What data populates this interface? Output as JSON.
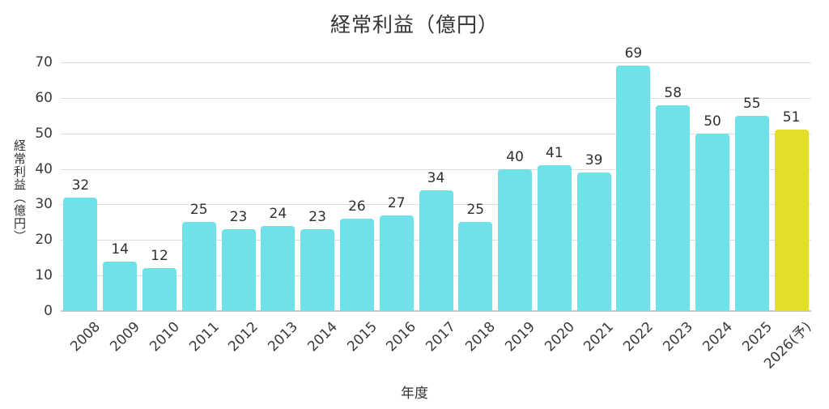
{
  "chart_data": {
    "type": "bar",
    "title": "経常利益（億円）",
    "xlabel": "年度",
    "ylabel": "経常利益（億円）",
    "categories": [
      "2008",
      "2009",
      "2010",
      "2011",
      "2012",
      "2013",
      "2014",
      "2015",
      "2016",
      "2017",
      "2018",
      "2019",
      "2020",
      "2021",
      "2022",
      "2023",
      "2024",
      "2025",
      "2026(予)"
    ],
    "values": [
      32,
      14,
      12,
      25,
      23,
      24,
      23,
      26,
      27,
      34,
      25,
      40,
      41,
      39,
      69,
      58,
      50,
      55,
      51
    ],
    "ylim": [
      0,
      70
    ],
    "yticks": [
      0,
      10,
      20,
      30,
      40,
      50,
      60,
      70
    ],
    "grid": true,
    "legend": "none",
    "colors": {
      "bar_default": "#6FE1E8",
      "bar_highlight": "#E5DE28",
      "highlight_index": 18,
      "gridline": "#dedede",
      "axis": "#c9c9c9",
      "text": "#333333"
    }
  }
}
